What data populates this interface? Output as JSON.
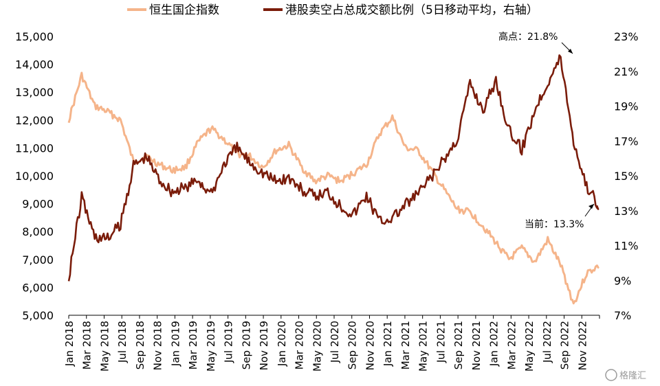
{
  "chart_data": {
    "type": "line",
    "title": "",
    "legend_position": "top",
    "grid": false,
    "x_labels": [
      "Jan 2018",
      "Mar 2018",
      "May 2018",
      "Jul 2018",
      "Sep 2018",
      "Nov 2018",
      "Jan 2019",
      "Mar 2019",
      "May 2019",
      "Jul 2019",
      "Sep 2019",
      "Nov 2019",
      "Jan 2020",
      "Mar 2020",
      "May 2020",
      "Jul 2020",
      "Sep 2020",
      "Nov 2020",
      "Jan 2021",
      "Mar 2021",
      "May 2021",
      "Jul 2021",
      "Sep 2021",
      "Nov 2021",
      "Jan 2022",
      "Mar 2022",
      "May 2022",
      "Jul 2022",
      "Sep 2022",
      "Nov 2022"
    ],
    "y_left": {
      "range": [
        5000,
        15000
      ],
      "ticks": [
        "5,000",
        "6,000",
        "7,000",
        "8,000",
        "9,000",
        "10,000",
        "11,000",
        "12,000",
        "13,000",
        "14,000",
        "15,000"
      ]
    },
    "y_right": {
      "range": [
        7,
        23
      ],
      "ticks": [
        "7%",
        "9%",
        "11%",
        "13%",
        "15%",
        "17%",
        "19%",
        "21%",
        "23%"
      ]
    },
    "series": [
      {
        "name": "恒生国企指数",
        "axis": "left",
        "color": "#f5b48a",
        "values": [
          12000,
          13600,
          12500,
          12300,
          12000,
          10500,
          10700,
          10400,
          10200,
          10300,
          11200,
          11700,
          11300,
          10800,
          10700,
          10300,
          10900,
          11100,
          10300,
          9800,
          10000,
          9800,
          10100,
          10400,
          11500,
          12100,
          11000,
          10900,
          10200,
          9500,
          8800,
          8700,
          8200,
          7600,
          7000,
          7400,
          6900,
          7700,
          6800,
          5400,
          6500,
          6800
        ]
      },
      {
        "name": "港股卖空占总成交额比例（5日移动平均，右轴）",
        "axis": "right",
        "color": "#7a1c0a",
        "values": [
          9.2,
          13.8,
          11.5,
          11.4,
          12.2,
          15.6,
          16.1,
          14.8,
          14.1,
          14.3,
          14.8,
          13.9,
          15.7,
          16.6,
          15.8,
          15.2,
          14.7,
          14.9,
          14.2,
          13.8,
          14.1,
          13.3,
          12.8,
          13.9,
          12.4,
          12.6,
          13.3,
          14.0,
          14.9,
          15.9,
          17.1,
          20.3,
          18.8,
          20.5,
          17.6,
          16.5,
          18.8,
          20.4,
          21.8,
          17.0,
          14.4,
          13.3
        ]
      }
    ],
    "annotations": [
      {
        "text": "高点：21.8%",
        "series": 1,
        "value": 21.8
      },
      {
        "text": "当前：13.3%",
        "series": 1,
        "value": 13.3
      }
    ]
  },
  "watermark": {
    "text": "格隆汇",
    "icon": "watermark-logo-icon"
  }
}
